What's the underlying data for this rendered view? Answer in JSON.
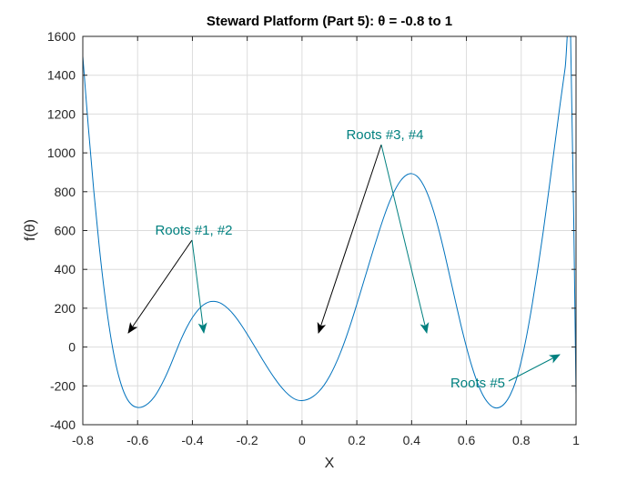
{
  "chart_data": {
    "type": "line",
    "title": "Steward Platform (Part 5):  θ = -0.8 to 1",
    "xlabel": "X",
    "ylabel": "f(θ)",
    "xlim": [
      -0.8,
      1
    ],
    "ylim": [
      -400,
      1600
    ],
    "xticks": [
      -0.8,
      -0.6,
      -0.4,
      -0.2,
      0,
      0.2,
      0.4,
      0.6,
      0.8,
      1
    ],
    "xtick_labels": [
      "-0.8",
      "-0.6",
      "-0.4",
      "-0.2",
      "0",
      "0.2",
      "0.4",
      "0.6",
      "0.8",
      "1"
    ],
    "yticks": [
      -400,
      -200,
      0,
      200,
      400,
      600,
      800,
      1000,
      1200,
      1400,
      1600
    ],
    "ytick_labels": [
      "-400",
      "-200",
      "0",
      "200",
      "400",
      "600",
      "800",
      "1000",
      "1200",
      "1400",
      "1600"
    ],
    "grid": true,
    "series": [
      {
        "name": "f(θ)",
        "color": "#0072BD",
        "x": [
          -0.8,
          -0.78,
          -0.76,
          -0.74,
          -0.72,
          -0.7,
          -0.68,
          -0.66,
          -0.64,
          -0.62,
          -0.6,
          -0.58,
          -0.56,
          -0.54,
          -0.52,
          -0.5,
          -0.48,
          -0.46,
          -0.44,
          -0.42,
          -0.4,
          -0.38,
          -0.36,
          -0.34,
          -0.32,
          -0.3,
          -0.28,
          -0.26,
          -0.24,
          -0.22,
          -0.2,
          -0.18,
          -0.16,
          -0.14,
          -0.12,
          -0.1,
          -0.08,
          -0.06,
          -0.04,
          -0.02,
          0,
          0.02,
          0.04,
          0.06,
          0.08,
          0.1,
          0.12,
          0.14,
          0.16,
          0.18,
          0.2,
          0.22,
          0.24,
          0.26,
          0.28,
          0.3,
          0.32,
          0.34,
          0.36,
          0.38,
          0.4,
          0.42,
          0.44,
          0.46,
          0.48,
          0.5,
          0.52,
          0.54,
          0.56,
          0.58,
          0.6,
          0.62,
          0.64,
          0.66,
          0.68,
          0.7,
          0.72,
          0.74,
          0.76,
          0.78,
          0.8,
          0.82,
          0.84,
          0.86,
          0.88,
          0.9,
          0.92,
          0.94,
          0.96,
          0.98,
          1.0
        ],
        "y": [
          1498,
          1136,
          806,
          517,
          271,
          70,
          -85,
          -193,
          -263,
          -299,
          -311,
          -307,
          -289,
          -258,
          -213,
          -158,
          -94,
          -24,
          44,
          103,
          152,
          190,
          217,
          232,
          235,
          228,
          210,
          184,
          150,
          110,
          66,
          20,
          -27,
          -74,
          -119,
          -161,
          -199,
          -231,
          -256,
          -272,
          -276,
          -270,
          -255,
          -231,
          -197,
          -152,
          -96,
          -30,
          46,
          130,
          220,
          313,
          407,
          500,
          590,
          675,
          750,
          811,
          857,
          885,
          893,
          879,
          842,
          782,
          700,
          599,
          484,
          360,
          235,
          113,
          0,
          -100,
          -183,
          -247,
          -289,
          -311,
          -311,
          -290,
          -246,
          -176,
          -73,
          60,
          219,
          398,
          592,
          800,
          1015,
          1230,
          1435,
          1615,
          -245
        ]
      }
    ],
    "annotations": [
      {
        "label": "Roots #1, #2",
        "color": "#00807F"
      },
      {
        "label": "Roots #3, #4",
        "color": "#00807F"
      },
      {
        "label": "Roots #5",
        "color": "#00807F"
      }
    ]
  }
}
